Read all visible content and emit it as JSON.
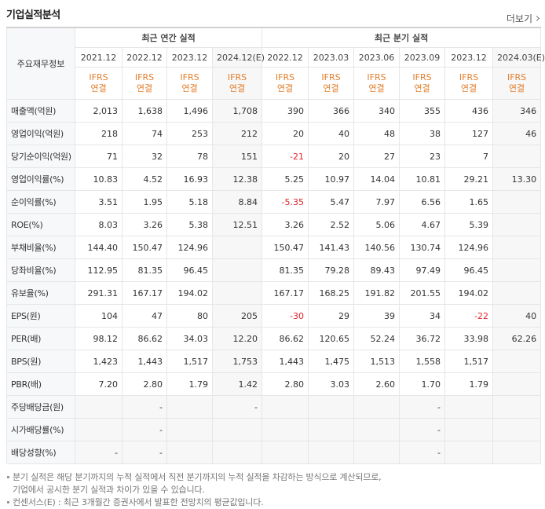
{
  "header": {
    "title": "기업실적분석",
    "more": "더보기"
  },
  "table": {
    "corner": "주요재무정보",
    "groups": [
      "최근 연간 실적",
      "최근 분기 실적"
    ],
    "periods": [
      "2021.12",
      "2022.12",
      "2023.12",
      "2024.12(E)",
      "2022.12",
      "2023.03",
      "2023.06",
      "2023.09",
      "2023.12",
      "2024.03(E)"
    ],
    "basis": [
      [
        "IFRS",
        "연결"
      ],
      [
        "IFRS",
        "연결"
      ],
      [
        "IFRS",
        "연결"
      ],
      [
        "IFRS",
        "연결"
      ],
      [
        "IFRS",
        "연결"
      ],
      [
        "IFRS",
        "연결"
      ],
      [
        "IFRS",
        "연결"
      ],
      [
        "IFRS",
        "연결"
      ],
      [
        "IFRS",
        "연결"
      ],
      [
        "IFRS",
        "연결"
      ]
    ],
    "sections": [
      {
        "rows": [
          {
            "label": "매출액(억원)",
            "values": [
              "2,013",
              "1,638",
              "1,496",
              "1,708",
              "390",
              "366",
              "340",
              "355",
              "436",
              "346"
            ]
          },
          {
            "label": "영업이익(억원)",
            "values": [
              "218",
              "74",
              "253",
              "212",
              "20",
              "40",
              "48",
              "38",
              "127",
              "46"
            ]
          },
          {
            "label": "당기순이익(억원)",
            "values": [
              "71",
              "32",
              "78",
              "151",
              "-21",
              "20",
              "27",
              "23",
              "7",
              null
            ]
          }
        ]
      },
      {
        "rows": [
          {
            "label": "영업이익률(%)",
            "values": [
              "10.83",
              "4.52",
              "16.93",
              "12.38",
              "5.25",
              "10.97",
              "14.04",
              "10.81",
              "29.21",
              "13.30"
            ]
          },
          {
            "label": "순이익률(%)",
            "values": [
              "3.51",
              "1.95",
              "5.18",
              "8.84",
              "-5.35",
              "5.47",
              "7.97",
              "6.56",
              "1.65",
              null
            ]
          },
          {
            "label": "ROE(%)",
            "values": [
              "8.03",
              "3.26",
              "5.38",
              "12.51",
              "3.26",
              "2.52",
              "5.06",
              "4.67",
              "5.39",
              null
            ]
          }
        ]
      },
      {
        "rows": [
          {
            "label": "부채비율(%)",
            "values": [
              "144.40",
              "150.47",
              "124.96",
              null,
              "150.47",
              "141.43",
              "140.56",
              "130.74",
              "124.96",
              null
            ]
          },
          {
            "label": "당좌비율(%)",
            "values": [
              "112.95",
              "81.35",
              "96.45",
              null,
              "81.35",
              "79.28",
              "89.43",
              "97.49",
              "96.45",
              null
            ]
          },
          {
            "label": "유보율(%)",
            "values": [
              "291.31",
              "167.17",
              "194.02",
              null,
              "167.17",
              "168.25",
              "191.82",
              "201.55",
              "194.02",
              null
            ]
          }
        ]
      },
      {
        "rows": [
          {
            "label": "EPS(원)",
            "values": [
              "104",
              "47",
              "80",
              "205",
              "-30",
              "29",
              "39",
              "34",
              "-22",
              "40"
            ]
          },
          {
            "label": "PER(배)",
            "values": [
              "98.12",
              "86.62",
              "34.03",
              "12.20",
              "86.62",
              "120.65",
              "52.24",
              "36.72",
              "33.98",
              "62.26"
            ]
          },
          {
            "label": "BPS(원)",
            "values": [
              "1,423",
              "1,443",
              "1,517",
              "1,753",
              "1,443",
              "1,475",
              "1,513",
              "1,558",
              "1,517",
              null
            ]
          },
          {
            "label": "PBR(배)",
            "values": [
              "7.20",
              "2.80",
              "1.79",
              "1.42",
              "2.80",
              "3.03",
              "2.60",
              "1.70",
              "1.79",
              null
            ]
          }
        ]
      },
      {
        "rows": [
          {
            "label": "주당배당금(원)",
            "values": [
              null,
              "-",
              null,
              "-",
              null,
              null,
              null,
              "-",
              null,
              null
            ]
          },
          {
            "label": "시가배당률(%)",
            "values": [
              null,
              "-",
              null,
              null,
              null,
              null,
              null,
              "-",
              null,
              null
            ]
          },
          {
            "label": "배당성향(%)",
            "values": [
              "-",
              "-",
              null,
              null,
              null,
              null,
              null,
              "-",
              null,
              null
            ]
          }
        ]
      }
    ]
  },
  "notes": [
    "분기 실적은 해당 분기까지의 누적 실적에서 직전 분기까지의 누적 실적을 차감하는 방식으로 계산되므로,",
    "기업에서 공시한 분기 실적과 차이가 있을 수 있습니다.",
    "컨센서스(E) : 최근 3개월간 증권사에서 발표한 전망치의 평균값입니다."
  ]
}
